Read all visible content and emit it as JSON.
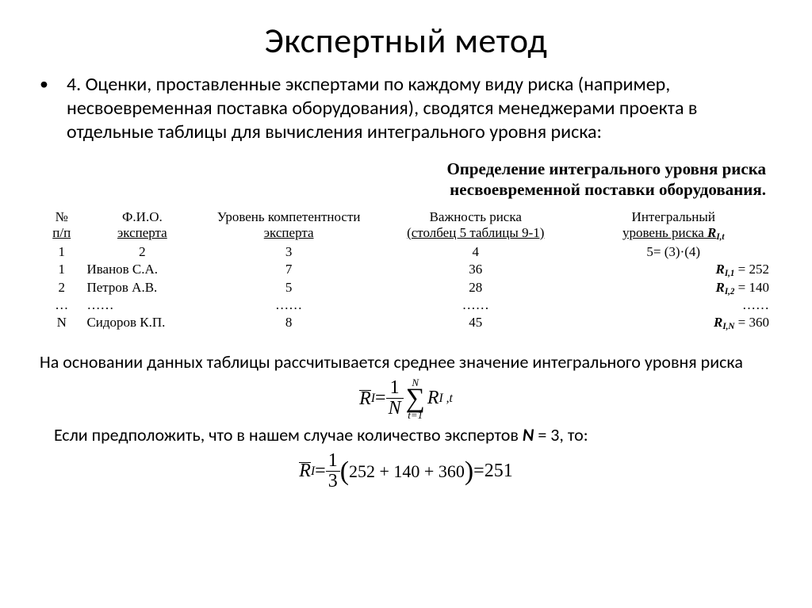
{
  "title": "Экспертный метод",
  "bullet": {
    "marker": "•",
    "text": "4. Оценки, проставленные экспертами по каждому виду риска (например, несвоевременная поставка оборудования), сводятся менеджерами проекта в отдельные таблицы для вычисления интегрального уровня риска:"
  },
  "subheading_line1": "Определение интегрального уровня риска",
  "subheading_line2": "несвоевременной поставки оборудования.",
  "table": {
    "headers": {
      "c1a": "№",
      "c1b": "п/п",
      "c2a": "Ф.И.О.",
      "c2b": "эксперта",
      "c3a": "Уровень компетентности",
      "c3b": "эксперта",
      "c4a": "Важность риска",
      "c4b": "(столбец 5 таблицы 9-1)",
      "c5a": "Интегральный",
      "c5b_pre": "уровень риска ",
      "c5b_sym": "R",
      "c5b_sub": "I,t"
    },
    "row_nums": {
      "c1": "1",
      "c2": "2",
      "c3": "3",
      "c4": "4",
      "c5": "5= (3)·(4)"
    },
    "r1": {
      "n": "1",
      "name": "Иванов С.А.",
      "comp": "7",
      "imp": "36",
      "res_sym": "R",
      "res_sub": "I,1",
      "res_eq": " = 252"
    },
    "r2": {
      "n": "2",
      "name": "Петров А.В.",
      "comp": "5",
      "imp": "28",
      "res_sym": "R",
      "res_sub": "I,2",
      "res_eq": " = 140"
    },
    "dots": {
      "n": "…",
      "name": "……",
      "comp": "……",
      "imp": "……",
      "res": "……"
    },
    "rN": {
      "n": "N",
      "name": "Сидоров К.П.",
      "comp": "8",
      "imp": "45",
      "res_sym": "R",
      "res_sub": "I,N",
      "res_eq": " = 360"
    }
  },
  "afternote": "На основании данных таблицы рассчитывается среднее значение интегрального уровня риска",
  "formula1": {
    "Rbar": "R",
    "Rsub": "I",
    "eq": " = ",
    "one": "1",
    "N": "N",
    "sum_top": "N",
    "sum_bot": "t=1",
    "term_R": "R",
    "term_sub": "I ,t"
  },
  "afternote2_pre": "Если предположить, что в нашем случае количество экспертов ",
  "afternote2_N": "N",
  "afternote2_post": " = 3, то:",
  "formula2": {
    "Rbar": "R",
    "Rsub": "I",
    "eq": " = ",
    "one": "1",
    "den": "3",
    "lpar": "(",
    "inside": "252 + 140 + 360",
    "rpar": ")",
    "eq2": " = ",
    "result": "251"
  }
}
